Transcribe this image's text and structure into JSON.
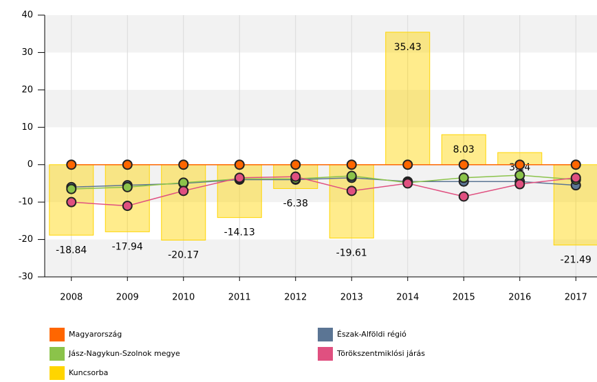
{
  "chart_data": {
    "type": "combo",
    "categories": [
      "2008",
      "2009",
      "2010",
      "2011",
      "2012",
      "2013",
      "2014",
      "2015",
      "2016",
      "2017"
    ],
    "ylim": [
      -30,
      40
    ],
    "yticks": [
      -30,
      -20,
      -10,
      0,
      10,
      20,
      30,
      40
    ],
    "grid": true,
    "series": [
      {
        "name": "Magyarország",
        "type": "line",
        "color": "#ff6600",
        "values": [
          0,
          0,
          0,
          0,
          0,
          0,
          0,
          0,
          0,
          0
        ]
      },
      {
        "name": "Észak-Alföldi régió",
        "type": "line",
        "color": "#5b7594",
        "values": [
          -6,
          -5.5,
          -5,
          -4,
          -4,
          -3.5,
          -4.5,
          -4.5,
          -4.5,
          -5.5
        ]
      },
      {
        "name": "Jász-Nagykun-Szolnok megye",
        "type": "line",
        "color": "#8bc34a",
        "values": [
          -6.5,
          -6,
          -4.8,
          -3.8,
          -3.8,
          -3,
          -4.8,
          -3.5,
          -2.8,
          -4
        ]
      },
      {
        "name": "Törökszentmiklósi járás",
        "type": "line",
        "color": "#e05080",
        "values": [
          -10,
          -11,
          -7,
          -3.5,
          -3.2,
          -7,
          -5,
          -8.5,
          -5.2,
          -3.5
        ]
      },
      {
        "name": "Kuncsorba",
        "type": "bar",
        "color": "#ffd500",
        "values": [
          -18.84,
          -17.94,
          -20.17,
          -14.13,
          -6.38,
          -19.61,
          35.43,
          8.03,
          3.24,
          -21.49
        ]
      }
    ]
  }
}
